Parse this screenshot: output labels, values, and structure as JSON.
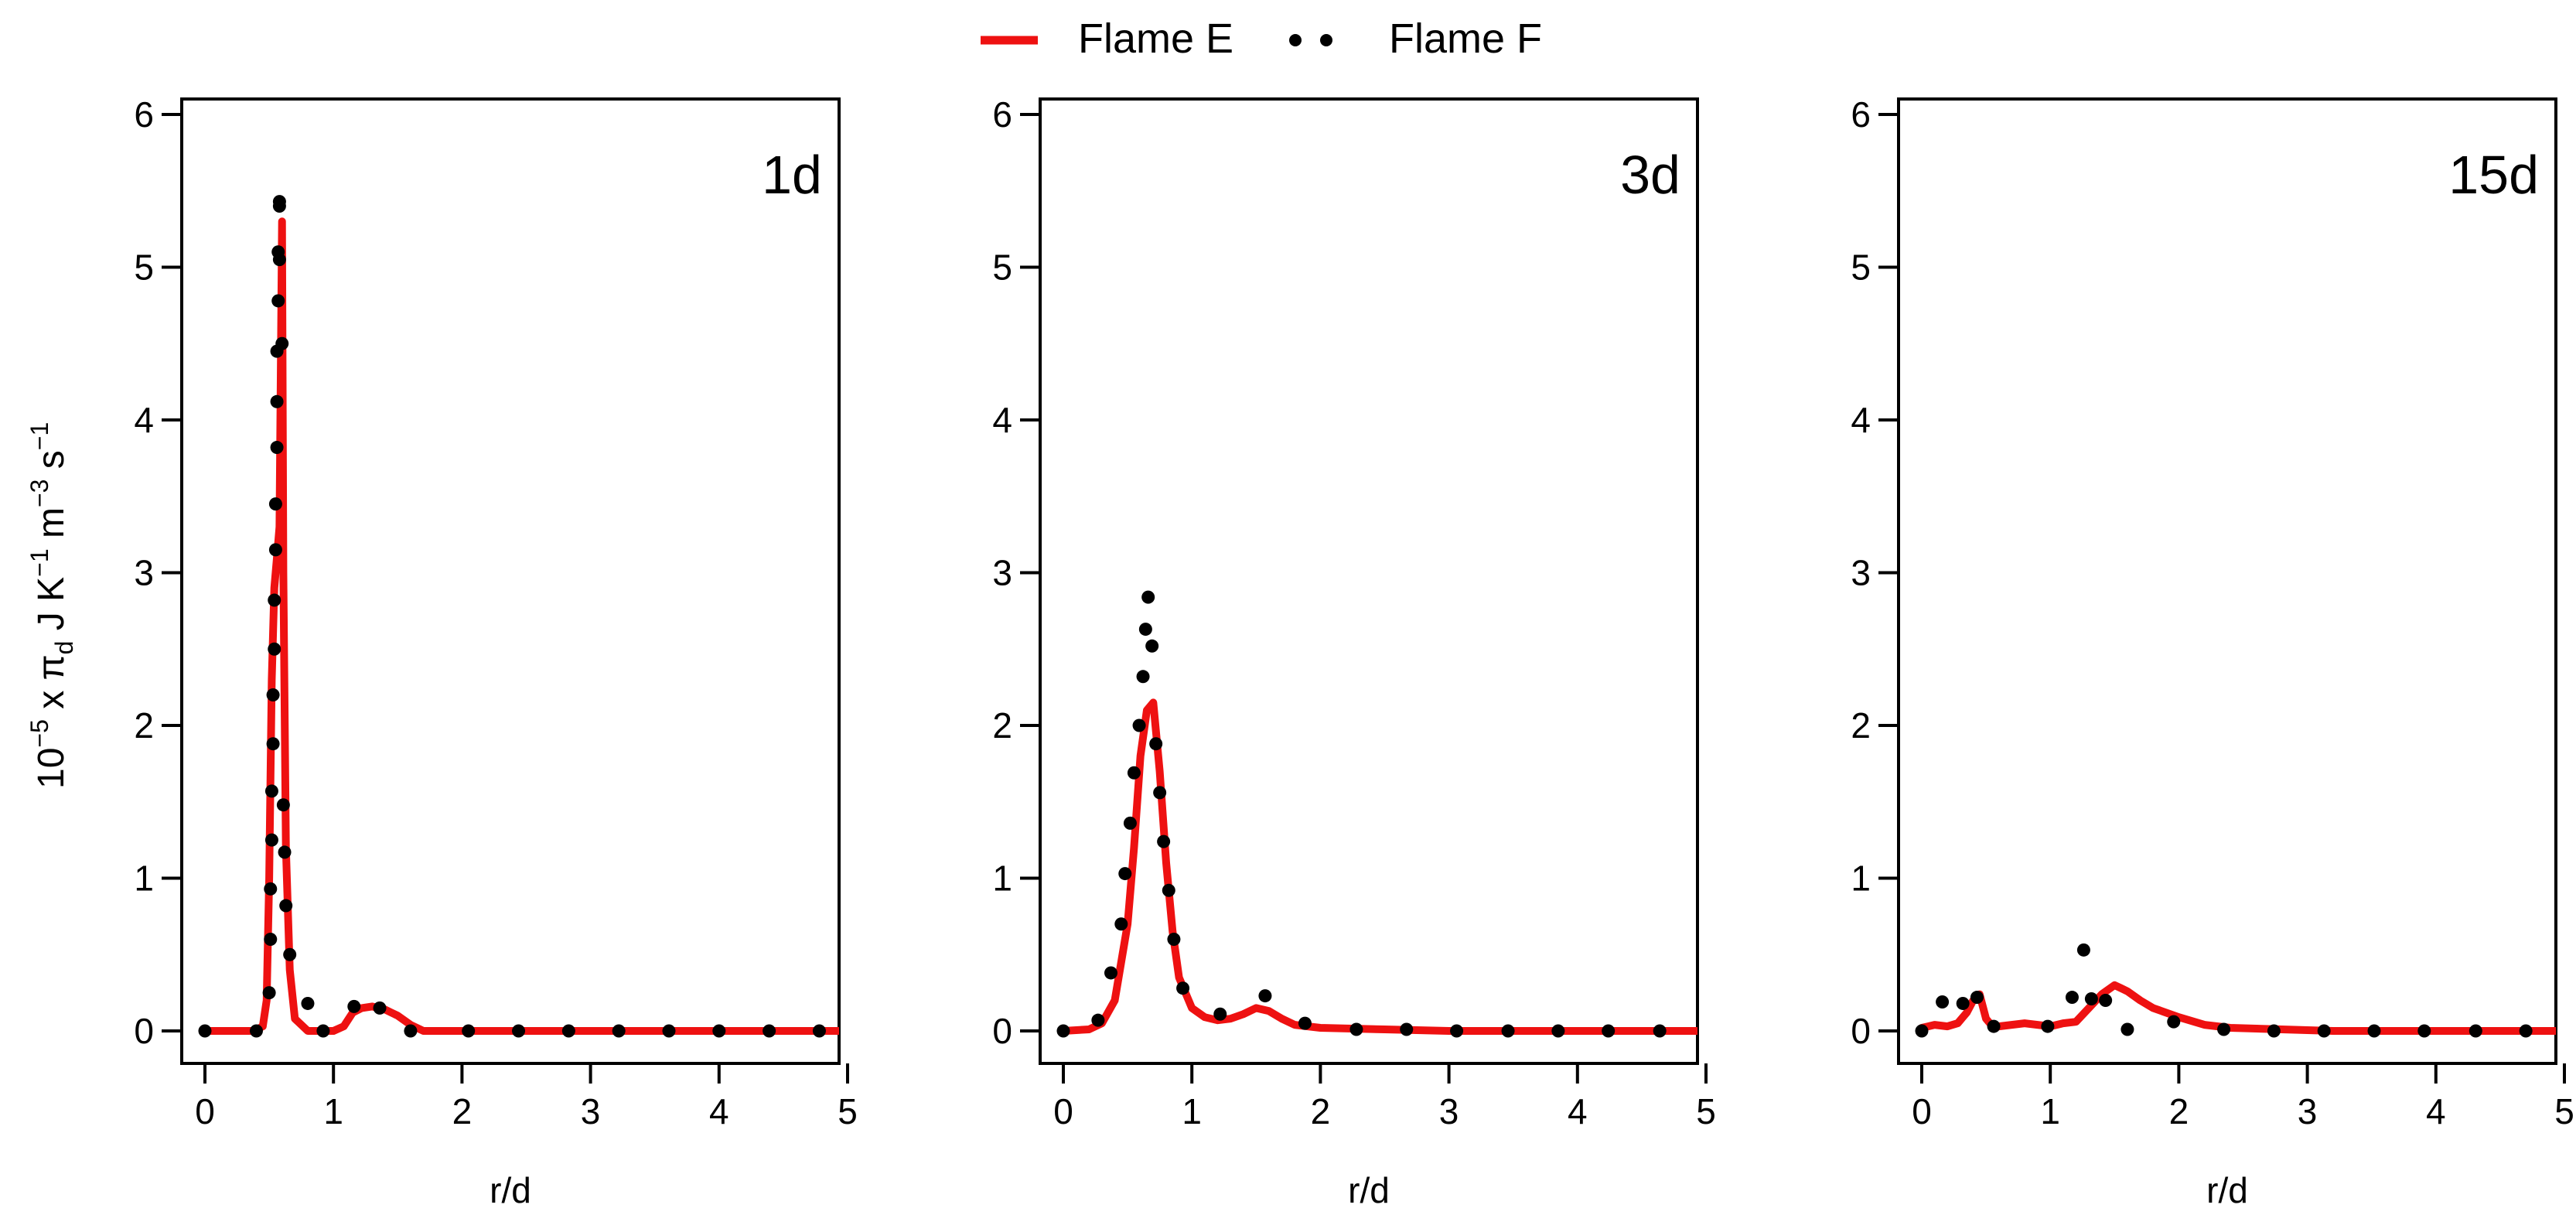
{
  "legend": {
    "flame_e_label": "Flame E",
    "flame_f_label": "Flame F",
    "flame_e_color": "#ee1111",
    "flame_f_color": "#000000"
  },
  "y_axis_label": {
    "base": "10",
    "exponent": "−5",
    "text1": " x π",
    "subscript": "d",
    "text2": " J K",
    "exp2": "−1",
    "text3": " m",
    "exp3": "−3",
    "text4": " s",
    "exp4": "−1"
  },
  "chart_data": [
    {
      "type": "line",
      "panel_label": "1d",
      "xlabel": "r/d",
      "xlim": [
        0,
        5.2
      ],
      "ylim": [
        0,
        6.2
      ],
      "xticks": [
        0,
        1,
        2,
        3,
        4,
        5
      ],
      "yticks": [
        0,
        1,
        2,
        3,
        4,
        5,
        6
      ],
      "series": [
        {
          "name": "Flame E",
          "style": "line",
          "x": [
            0,
            0.38,
            0.45,
            0.48,
            0.5,
            0.52,
            0.54,
            0.56,
            0.58,
            0.6,
            0.61,
            0.63,
            0.66,
            0.7,
            0.8,
            1.0,
            1.08,
            1.15,
            1.22,
            1.3,
            1.4,
            1.5,
            1.6,
            1.7,
            2.0,
            3.0,
            4.0,
            5.2
          ],
          "y": [
            0,
            0,
            0.03,
            0.2,
            1.0,
            2.3,
            2.9,
            3.1,
            3.3,
            5.3,
            3.0,
            1.2,
            0.4,
            0.08,
            0.0,
            0.0,
            0.03,
            0.12,
            0.15,
            0.16,
            0.14,
            0.1,
            0.04,
            0.0,
            0.0,
            0.0,
            0.0,
            0.0
          ]
        },
        {
          "name": "Flame F",
          "style": "points",
          "x": [
            0,
            0.4,
            0.5,
            0.51,
            0.51,
            0.52,
            0.52,
            0.53,
            0.53,
            0.54,
            0.54,
            0.55,
            0.55,
            0.56,
            0.56,
            0.56,
            0.57,
            0.57,
            0.58,
            0.58,
            0.58,
            0.6,
            0.61,
            0.62,
            0.63,
            0.66,
            0.8,
            0.92,
            1.16,
            1.36,
            1.6,
            2.05,
            2.44,
            2.83,
            3.22,
            3.61,
            4.0,
            4.39,
            4.78
          ],
          "y": [
            0,
            0,
            0.25,
            0.6,
            0.93,
            1.25,
            1.57,
            1.88,
            2.2,
            2.5,
            2.82,
            3.15,
            3.45,
            3.82,
            4.12,
            4.45,
            4.78,
            5.1,
            5.43,
            5.4,
            5.05,
            4.5,
            1.48,
            1.17,
            0.82,
            0.5,
            0.18,
            0.0,
            0.16,
            0.15,
            0.0,
            0.0,
            0.0,
            0.0,
            0.0,
            0.0,
            0.0,
            0.0,
            0.0
          ]
        }
      ]
    },
    {
      "type": "line",
      "panel_label": "3d",
      "xlabel": "r/d",
      "xlim": [
        0,
        5.2
      ],
      "ylim": [
        0,
        6.2
      ],
      "xticks": [
        0,
        1,
        2,
        3,
        4,
        5
      ],
      "yticks": [
        0,
        1,
        2,
        3,
        4,
        5,
        6
      ],
      "series": [
        {
          "name": "Flame E",
          "style": "line",
          "x": [
            0,
            0.2,
            0.3,
            0.4,
            0.5,
            0.55,
            0.6,
            0.65,
            0.7,
            0.75,
            0.8,
            0.85,
            0.9,
            1.0,
            1.1,
            1.2,
            1.3,
            1.4,
            1.5,
            1.6,
            1.7,
            1.8,
            2.0,
            2.5,
            3.0,
            4.0,
            5.2
          ],
          "y": [
            0,
            0.01,
            0.05,
            0.2,
            0.7,
            1.2,
            1.8,
            2.1,
            2.15,
            1.7,
            1.1,
            0.65,
            0.35,
            0.15,
            0.09,
            0.07,
            0.08,
            0.11,
            0.15,
            0.13,
            0.08,
            0.04,
            0.02,
            0.01,
            0.0,
            0.0,
            0.0
          ]
        },
        {
          "name": "Flame F",
          "style": "points",
          "x": [
            0,
            0.27,
            0.37,
            0.45,
            0.48,
            0.52,
            0.55,
            0.59,
            0.62,
            0.64,
            0.66,
            0.69,
            0.72,
            0.75,
            0.78,
            0.82,
            0.86,
            0.93,
            1.22,
            1.57,
            1.88,
            2.28,
            2.67,
            3.06,
            3.46,
            3.85,
            4.24,
            4.64,
            5.03
          ],
          "y": [
            0,
            0.07,
            0.38,
            0.7,
            1.03,
            1.36,
            1.69,
            2.0,
            2.32,
            2.63,
            2.84,
            2.52,
            1.88,
            1.56,
            1.24,
            0.92,
            0.6,
            0.28,
            0.11,
            0.23,
            0.05,
            0.01,
            0.01,
            0.0,
            0.0,
            0.0,
            0.0,
            0.0,
            0.0
          ]
        }
      ]
    },
    {
      "type": "line",
      "panel_label": "15d",
      "xlabel": "r/d",
      "xlim": [
        0,
        5.2
      ],
      "ylim": [
        0,
        6.2
      ],
      "xticks": [
        0,
        1,
        2,
        3,
        4,
        5
      ],
      "yticks": [
        0,
        1,
        2,
        3,
        4,
        5,
        6
      ],
      "series": [
        {
          "name": "Flame E",
          "style": "line",
          "x": [
            0,
            0.05,
            0.1,
            0.2,
            0.28,
            0.35,
            0.4,
            0.45,
            0.5,
            0.55,
            0.6,
            0.8,
            1.0,
            1.1,
            1.2,
            1.3,
            1.4,
            1.5,
            1.55,
            1.6,
            1.7,
            1.8,
            2.0,
            2.2,
            2.4,
            2.8,
            3.2,
            4.0,
            5.2
          ],
          "y": [
            0.02,
            0.03,
            0.04,
            0.03,
            0.05,
            0.12,
            0.2,
            0.24,
            0.08,
            0.03,
            0.03,
            0.05,
            0.03,
            0.05,
            0.06,
            0.15,
            0.24,
            0.3,
            0.28,
            0.26,
            0.2,
            0.15,
            0.09,
            0.04,
            0.02,
            0.01,
            0.0,
            0.0,
            0.0
          ]
        },
        {
          "name": "Flame F",
          "style": "points",
          "x": [
            0,
            0.16,
            0.32,
            0.43,
            0.56,
            0.98,
            1.17,
            1.26,
            1.32,
            1.43,
            1.6,
            1.96,
            2.35,
            2.74,
            3.13,
            3.52,
            3.91,
            4.31,
            4.7,
            5.1
          ],
          "y": [
            0,
            0.19,
            0.18,
            0.22,
            0.03,
            0.03,
            0.22,
            0.53,
            0.21,
            0.2,
            0.01,
            0.06,
            0.01,
            0.0,
            0.0,
            0.0,
            0.0,
            0.0,
            0.0,
            0.0
          ]
        }
      ]
    }
  ]
}
